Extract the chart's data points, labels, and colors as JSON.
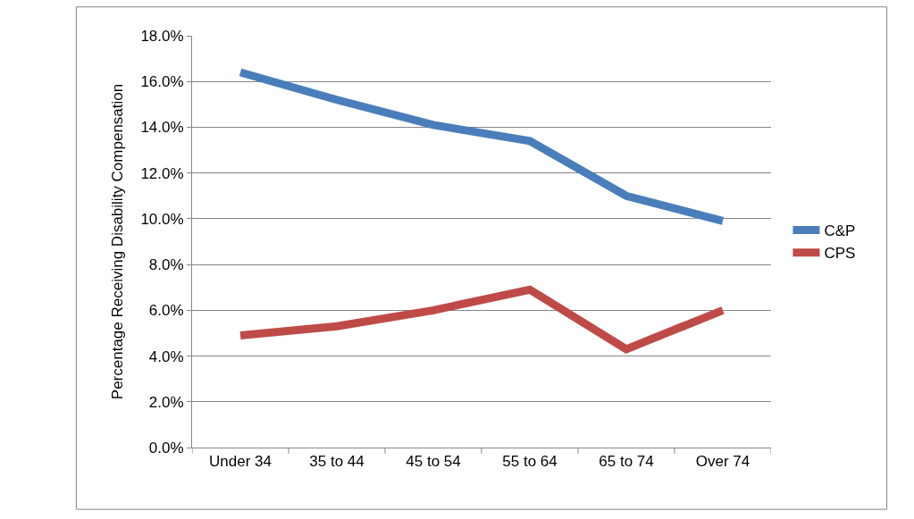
{
  "chart_data": {
    "type": "line",
    "ylabel": "Percentage Receiving Disability Compensation",
    "categories": [
      "Under 34",
      "35 to 44",
      "45 to 54",
      "55 to 64",
      "65 to 74",
      "Over 74"
    ],
    "series": [
      {
        "name": "C&P",
        "color": "#4a7ebb",
        "values": [
          16.4,
          15.2,
          14.1,
          13.4,
          11.0,
          9.9
        ]
      },
      {
        "name": "CPS",
        "color": "#be4b48",
        "values": [
          4.9,
          5.3,
          6.0,
          6.9,
          4.3,
          6.0
        ]
      }
    ],
    "ylim": [
      0,
      18
    ],
    "yticks": [
      {
        "value": 0,
        "label": "0.0%"
      },
      {
        "value": 2,
        "label": "2.0%"
      },
      {
        "value": 4,
        "label": "4.0%"
      },
      {
        "value": 6,
        "label": "6.0%"
      },
      {
        "value": 8,
        "label": "8.0%"
      },
      {
        "value": 10,
        "label": "10.0%"
      },
      {
        "value": 12,
        "label": "12.0%"
      },
      {
        "value": 14,
        "label": "14.0%"
      },
      {
        "value": 16,
        "label": "16.0%"
      },
      {
        "value": 18,
        "label": "18.0%"
      }
    ],
    "grid": "y",
    "legend": "right",
    "marker": "none",
    "line_style": "solid"
  }
}
